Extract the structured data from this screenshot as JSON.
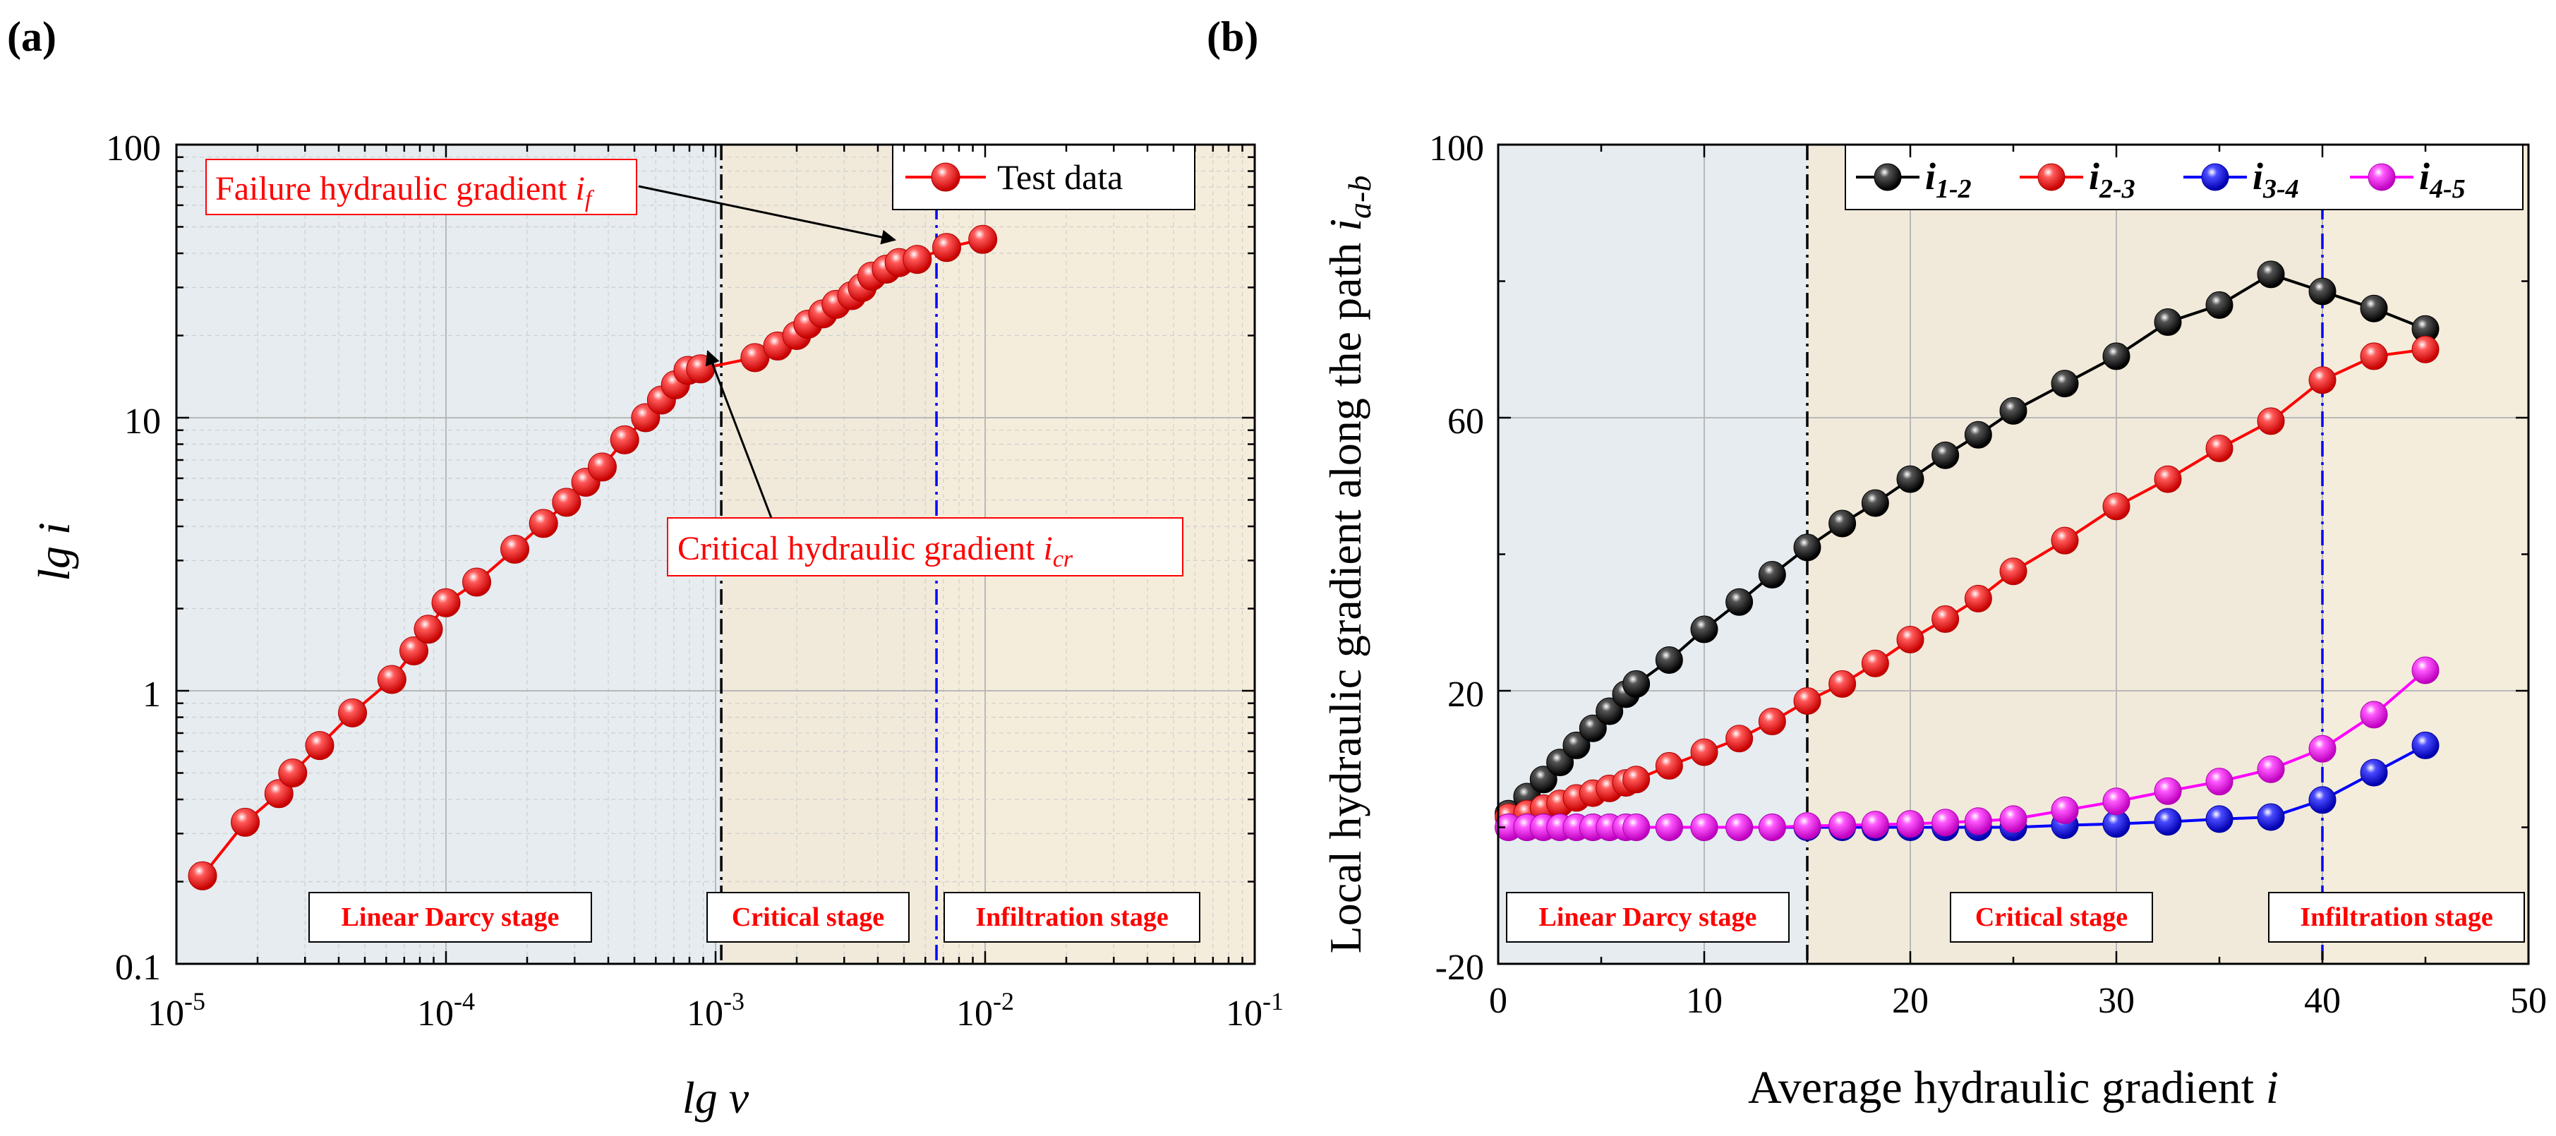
{
  "panels": {
    "a": {
      "panel_label": "(a)",
      "xlabel_main": "lg",
      "xlabel_var": "v",
      "ylabel_main": "lg",
      "ylabel_var": "i",
      "legend_label": "Test data",
      "annotation_failure": "Failure hydraulic gradient ",
      "annotation_failure_var": "i",
      "annotation_failure_sub": "f",
      "annotation_critical": "Critical hydraulic gradient ",
      "annotation_critical_var": "i",
      "annotation_critical_sub": "cr",
      "stages": [
        "Linear Darcy stage",
        "Critical stage",
        "Infiltration stage"
      ],
      "x_ticks": [
        {
          "base": "10",
          "exp": "-5"
        },
        {
          "base": "10",
          "exp": "-4"
        },
        {
          "base": "10",
          "exp": "-3"
        },
        {
          "base": "10",
          "exp": "-2"
        },
        {
          "base": "10",
          "exp": "-1"
        }
      ],
      "y_ticks": [
        "0.1",
        "1",
        "10",
        "100"
      ]
    },
    "b": {
      "panel_label": "(b)",
      "xlabel": "Average hydraulic gradient ",
      "xlabel_var": "i",
      "ylabel": "Local hydraulic gradient along the path ",
      "ylabel_var": "i",
      "ylabel_sub": "a-b",
      "stages": [
        "Linear Darcy stage",
        "Critical stage",
        "Infiltration stage"
      ],
      "x_ticks": [
        "0",
        "10",
        "20",
        "30",
        "40",
        "50"
      ],
      "y_ticks": [
        "-20",
        "20",
        "60",
        "100"
      ],
      "legend": [
        {
          "var": "i",
          "sub": "1-2"
        },
        {
          "var": "i",
          "sub": "2-3"
        },
        {
          "var": "i",
          "sub": "3-4"
        },
        {
          "var": "i",
          "sub": "4-5"
        }
      ]
    }
  },
  "colors": {
    "linear_bg": "#e6ecf0",
    "critical_bg": "#f1eada",
    "infiltration_bg": "#f5eddb",
    "test_data": "#ff0000",
    "i12": "#000000",
    "i23": "#ff0000",
    "i34": "#0000ff",
    "i45": "#ff00ff",
    "text_red": "#ff0000",
    "vline_blue": "#0000ff"
  },
  "chart_data": [
    {
      "type": "scatter",
      "title": "",
      "xlabel": "lg v",
      "ylabel": "lg i",
      "xscale": "log",
      "yscale": "log",
      "xlim": [
        1e-05,
        0.1
      ],
      "ylim": [
        0.1,
        100
      ],
      "critical_v": 0.00105,
      "failure_v": 0.0066,
      "legend": "top-right",
      "series": [
        {
          "name": "Test data",
          "x": [
            1.25e-05,
            1.8e-05,
            2.4e-05,
            2.7e-05,
            3.4e-05,
            4.5e-05,
            6.3e-05,
            7.6e-05,
            8.6e-05,
            0.0001,
            0.00013,
            0.00018,
            0.00023,
            0.00028,
            0.00033,
            0.00038,
            0.00046,
            0.00055,
            0.00063,
            0.00071,
            0.00079,
            0.00088,
            0.0014,
            0.0017,
            0.002,
            0.0022,
            0.0025,
            0.0028,
            0.0032,
            0.0035,
            0.0038,
            0.0043,
            0.0048,
            0.0056,
            0.0072,
            0.0098
          ],
          "y": [
            0.21,
            0.33,
            0.42,
            0.5,
            0.63,
            0.83,
            1.1,
            1.4,
            1.68,
            2.1,
            2.5,
            3.3,
            4.1,
            4.9,
            5.8,
            6.6,
            8.3,
            10,
            11.6,
            13.2,
            14.9,
            15.1,
            16.6,
            18.3,
            20,
            22,
            24,
            26,
            28,
            30,
            33,
            35,
            37,
            38,
            42,
            45
          ]
        }
      ],
      "annotations": [
        "Failure hydraulic gradient i_f",
        "Critical hydraulic gradient i_cr"
      ]
    },
    {
      "type": "line",
      "title": "",
      "xlabel": "Average hydraulic gradient i",
      "ylabel": "Local hydraulic gradient along the path i_a-b",
      "xlim": [
        0,
        50
      ],
      "ylim": [
        -20,
        100
      ],
      "critical_i": 15,
      "failure_i": 40,
      "legend": "top-right",
      "x": [
        0.5,
        1.4,
        2.2,
        3,
        3.8,
        4.6,
        5.4,
        6.2,
        6.7,
        8.3,
        10,
        11.7,
        13.3,
        15,
        16.7,
        18.3,
        20,
        21.7,
        23.3,
        25,
        27.5,
        30,
        32.5,
        35,
        37.5,
        40,
        42.5,
        45
      ],
      "series": [
        {
          "name": "i1-2",
          "values": [
            2,
            4.5,
            7,
            9.5,
            12,
            14.5,
            17,
            19.5,
            21,
            24.5,
            29,
            33,
            37,
            41,
            44.5,
            47.5,
            51,
            54.5,
            57.5,
            61,
            65,
            69,
            74,
            76.5,
            81,
            78.5,
            76,
            73
          ]
        },
        {
          "name": "i2-3",
          "values": [
            1.5,
            2,
            2.8,
            3.5,
            4.3,
            5,
            5.7,
            6.5,
            7,
            9,
            11,
            13,
            15.5,
            18.5,
            21,
            24,
            27.5,
            30.5,
            33.5,
            37.5,
            42,
            47,
            51,
            55.5,
            59.5,
            65.5,
            69,
            70
          ]
        },
        {
          "name": "i3-4",
          "values": [
            0,
            0,
            0,
            0,
            0,
            0,
            0,
            0,
            0,
            0,
            0,
            0,
            0,
            0,
            0,
            0,
            0,
            0,
            0,
            0,
            0.3,
            0.5,
            0.8,
            1.2,
            1.5,
            4,
            8,
            12
          ]
        },
        {
          "name": "i4-5",
          "values": [
            0,
            0,
            0,
            0,
            0,
            0,
            0,
            0,
            0,
            0,
            0,
            0,
            0,
            0.2,
            0.3,
            0.4,
            0.5,
            0.7,
            0.9,
            1.2,
            2.5,
            3.8,
            5.3,
            6.7,
            8.5,
            11.5,
            16.5,
            23
          ]
        }
      ]
    }
  ]
}
